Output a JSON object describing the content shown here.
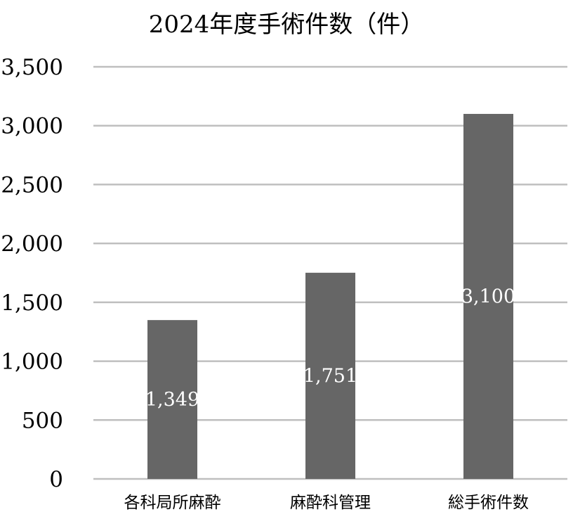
{
  "chart_data": {
    "type": "bar",
    "title": "2024年度手術件数（件）",
    "categories": [
      "各科局所麻酔",
      "麻酔科管理",
      "総手術件数"
    ],
    "values": [
      1349,
      1751,
      3100
    ],
    "value_labels": [
      "1,349",
      "1,751",
      "3,100"
    ],
    "ylim": [
      0,
      3500
    ],
    "yticks": [
      0,
      500,
      1000,
      1500,
      2000,
      2500,
      3000,
      3500
    ],
    "ytick_labels": [
      "0",
      "500",
      "1,000",
      "1,500",
      "2,000",
      "2,500",
      "3,000",
      "3,500"
    ],
    "xlabel": "",
    "ylabel": "",
    "grid": true,
    "legend": "none",
    "colors": {
      "bar": "#666666",
      "grid": "#bfbfbf",
      "axis": "#bfbfbf",
      "text": "#000000",
      "data_label": "#ffffff"
    }
  }
}
